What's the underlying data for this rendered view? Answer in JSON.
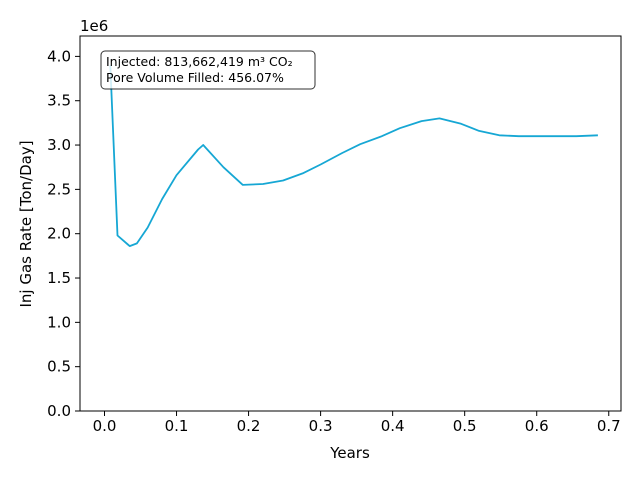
{
  "chart_data": {
    "type": "line",
    "xlabel": "Years",
    "ylabel": "Inj Gas Rate [Ton/Day]",
    "y_scale_label": "1e6",
    "xlim": [
      -0.034,
      0.717
    ],
    "ylim": [
      0.0,
      4.23
    ],
    "x_ticks": [
      0.0,
      0.1,
      0.2,
      0.3,
      0.4,
      0.5,
      0.6,
      0.7
    ],
    "x_tick_labels": [
      "0.0",
      "0.1",
      "0.2",
      "0.3",
      "0.4",
      "0.5",
      "0.6",
      "0.7"
    ],
    "y_ticks": [
      0.0,
      0.5,
      1.0,
      1.5,
      2.0,
      2.5,
      3.0,
      3.5,
      4.0
    ],
    "y_tick_labels": [
      "0.0",
      "0.5",
      "1.0",
      "1.5",
      "2.0",
      "2.5",
      "3.0",
      "3.5",
      "4.0"
    ],
    "grid": false,
    "line_color": "#16a7d4",
    "annotation": {
      "line1": "Injected: 813,662,419 m³ CO₂",
      "line2": "Pore Volume Filled: 456.07%"
    },
    "series": [
      {
        "x": [
          0.008,
          0.018,
          0.035,
          0.045,
          0.06,
          0.08,
          0.1,
          0.13,
          0.137,
          0.165,
          0.192,
          0.22,
          0.248,
          0.275,
          0.3,
          0.33,
          0.355,
          0.385,
          0.41,
          0.44,
          0.465,
          0.495,
          0.52,
          0.548,
          0.575,
          0.6,
          0.63,
          0.655,
          0.685
        ],
        "y": [
          3.9,
          1.98,
          1.86,
          1.89,
          2.07,
          2.39,
          2.66,
          2.95,
          3.0,
          2.75,
          2.55,
          2.56,
          2.6,
          2.68,
          2.78,
          2.91,
          3.01,
          3.1,
          3.19,
          3.27,
          3.3,
          3.24,
          3.16,
          3.11,
          3.1,
          3.1,
          3.1,
          3.1,
          3.11
        ]
      }
    ]
  }
}
